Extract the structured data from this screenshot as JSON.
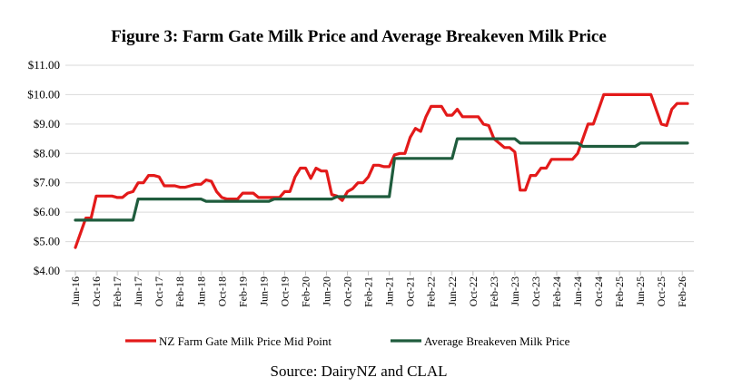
{
  "chart_data": {
    "type": "line",
    "title": "Figure 3: Farm Gate Milk Price and Average Breakeven Milk Price",
    "source": "Source: DairyNZ and CLAL",
    "ylim": [
      4,
      11
    ],
    "y_ticks": [
      "$4.00",
      "$5.00",
      "$6.00",
      "$7.00",
      "$8.00",
      "$9.00",
      "$10.00",
      "$11.00"
    ],
    "x_ticks": [
      "Jun-16",
      "Oct-16",
      "Feb-17",
      "Jun-17",
      "Oct-17",
      "Feb-18",
      "Jun-18",
      "Oct-18",
      "Feb-19",
      "Jun-19",
      "Oct-19",
      "Feb-20",
      "Jun-20",
      "Oct-20",
      "Feb-21",
      "Jun-21",
      "Oct-21",
      "Feb-22",
      "Jun-22",
      "Oct-22",
      "Feb-23",
      "Jun-23",
      "Oct-23",
      "Feb-24",
      "Jun-24",
      "Oct-24",
      "Feb-25",
      "Jun-25",
      "Oct-25",
      "Feb-26"
    ],
    "grid": true,
    "legend_position": "bottom",
    "series": [
      {
        "name": "NZ Farm Gate Milk Price Mid Point",
        "color": "#e31a1a",
        "points": [
          [
            "Jun-16",
            4.8
          ],
          [
            "Jul-16",
            5.3
          ],
          [
            "Aug-16",
            5.8
          ],
          [
            "Sep-16",
            5.8
          ],
          [
            "Oct-16",
            6.55
          ],
          [
            "Nov-16",
            6.55
          ],
          [
            "Dec-16",
            6.55
          ],
          [
            "Jan-17",
            6.55
          ],
          [
            "Feb-17",
            6.5
          ],
          [
            "Mar-17",
            6.5
          ],
          [
            "Apr-17",
            6.65
          ],
          [
            "May-17",
            6.7
          ],
          [
            "Jun-17",
            7.0
          ],
          [
            "Jul-17",
            7.0
          ],
          [
            "Aug-17",
            7.25
          ],
          [
            "Sep-17",
            7.25
          ],
          [
            "Oct-17",
            7.2
          ],
          [
            "Nov-17",
            6.9
          ],
          [
            "Dec-17",
            6.9
          ],
          [
            "Jan-18",
            6.9
          ],
          [
            "Feb-18",
            6.85
          ],
          [
            "Mar-18",
            6.85
          ],
          [
            "Apr-18",
            6.9
          ],
          [
            "May-18",
            6.95
          ],
          [
            "Jun-18",
            6.95
          ],
          [
            "Jul-18",
            7.1
          ],
          [
            "Aug-18",
            7.05
          ],
          [
            "Sep-18",
            6.7
          ],
          [
            "Oct-18",
            6.5
          ],
          [
            "Nov-18",
            6.45
          ],
          [
            "Dec-18",
            6.45
          ],
          [
            "Jan-19",
            6.45
          ],
          [
            "Feb-19",
            6.65
          ],
          [
            "Mar-19",
            6.65
          ],
          [
            "Apr-19",
            6.65
          ],
          [
            "May-19",
            6.5
          ],
          [
            "Jun-19",
            6.5
          ],
          [
            "Jul-19",
            6.5
          ],
          [
            "Aug-19",
            6.5
          ],
          [
            "Sep-19",
            6.5
          ],
          [
            "Oct-19",
            6.7
          ],
          [
            "Nov-19",
            6.7
          ],
          [
            "Dec-19",
            7.2
          ],
          [
            "Jan-20",
            7.5
          ],
          [
            "Feb-20",
            7.5
          ],
          [
            "Mar-20",
            7.15
          ],
          [
            "Apr-20",
            7.5
          ],
          [
            "May-20",
            7.4
          ],
          [
            "Jun-20",
            7.4
          ],
          [
            "Jul-20",
            6.6
          ],
          [
            "Aug-20",
            6.55
          ],
          [
            "Sep-20",
            6.4
          ],
          [
            "Oct-20",
            6.7
          ],
          [
            "Nov-20",
            6.8
          ],
          [
            "Dec-20",
            7.0
          ],
          [
            "Jan-21",
            7.0
          ],
          [
            "Feb-21",
            7.2
          ],
          [
            "Mar-21",
            7.6
          ],
          [
            "Apr-21",
            7.6
          ],
          [
            "May-21",
            7.55
          ],
          [
            "Jun-21",
            7.55
          ],
          [
            "Jul-21",
            7.95
          ],
          [
            "Aug-21",
            8.0
          ],
          [
            "Sep-21",
            8.0
          ],
          [
            "Oct-21",
            8.55
          ],
          [
            "Nov-21",
            8.85
          ],
          [
            "Dec-21",
            8.75
          ],
          [
            "Jan-22",
            9.25
          ],
          [
            "Feb-22",
            9.6
          ],
          [
            "Mar-22",
            9.6
          ],
          [
            "Apr-22",
            9.6
          ],
          [
            "May-22",
            9.3
          ],
          [
            "Jun-22",
            9.3
          ],
          [
            "Jul-22",
            9.5
          ],
          [
            "Aug-22",
            9.25
          ],
          [
            "Sep-22",
            9.25
          ],
          [
            "Oct-22",
            9.25
          ],
          [
            "Nov-22",
            9.25
          ],
          [
            "Dec-22",
            9.0
          ],
          [
            "Jan-23",
            8.95
          ],
          [
            "Feb-23",
            8.5
          ],
          [
            "Mar-23",
            8.35
          ],
          [
            "Apr-23",
            8.2
          ],
          [
            "May-23",
            8.2
          ],
          [
            "Jun-23",
            8.05
          ],
          [
            "Jul-23",
            6.75
          ],
          [
            "Aug-23",
            6.75
          ],
          [
            "Sep-23",
            7.25
          ],
          [
            "Oct-23",
            7.25
          ],
          [
            "Nov-23",
            7.5
          ],
          [
            "Dec-23",
            7.5
          ],
          [
            "Jan-24",
            7.8
          ],
          [
            "Feb-24",
            7.8
          ],
          [
            "Mar-24",
            7.8
          ],
          [
            "Apr-24",
            7.8
          ],
          [
            "May-24",
            7.8
          ],
          [
            "Jun-24",
            8.0
          ],
          [
            "Jul-24",
            8.5
          ],
          [
            "Aug-24",
            9.0
          ],
          [
            "Sep-24",
            9.0
          ],
          [
            "Oct-24",
            9.5
          ],
          [
            "Nov-24",
            10.0
          ],
          [
            "Dec-24",
            10.0
          ],
          [
            "Jan-25",
            10.0
          ],
          [
            "Feb-25",
            10.0
          ],
          [
            "Mar-25",
            10.0
          ],
          [
            "Apr-25",
            10.0
          ],
          [
            "May-25",
            10.0
          ],
          [
            "Jun-25",
            10.0
          ],
          [
            "Jul-25",
            10.0
          ],
          [
            "Aug-25",
            10.0
          ],
          [
            "Sep-25",
            9.5
          ],
          [
            "Oct-25",
            9.0
          ],
          [
            "Nov-25",
            8.95
          ],
          [
            "Dec-25",
            9.5
          ],
          [
            "Jan-26",
            9.7
          ],
          [
            "Feb-26",
            9.7
          ],
          [
            "Mar-26",
            9.7
          ]
        ]
      },
      {
        "name": "Average Breakeven Milk Price",
        "color": "#1f5c3d",
        "points": [
          [
            "Jun-16",
            5.73
          ],
          [
            "May-17",
            5.73
          ],
          [
            "Jun-17",
            6.45
          ],
          [
            "Jun-18",
            6.45
          ],
          [
            "Jul-18",
            6.37
          ],
          [
            "Jul-19",
            6.37
          ],
          [
            "Aug-19",
            6.45
          ],
          [
            "Jul-20",
            6.45
          ],
          [
            "Aug-20",
            6.53
          ],
          [
            "Jun-21",
            6.53
          ],
          [
            "Jul-21",
            7.83
          ],
          [
            "Jun-22",
            7.83
          ],
          [
            "Jul-22",
            8.5
          ],
          [
            "Jun-23",
            8.5
          ],
          [
            "Jul-23",
            8.35
          ],
          [
            "Jun-24",
            8.35
          ],
          [
            "Jul-24",
            8.24
          ],
          [
            "May-25",
            8.24
          ],
          [
            "Jun-25",
            8.35
          ],
          [
            "Mar-26",
            8.35
          ]
        ]
      }
    ]
  }
}
